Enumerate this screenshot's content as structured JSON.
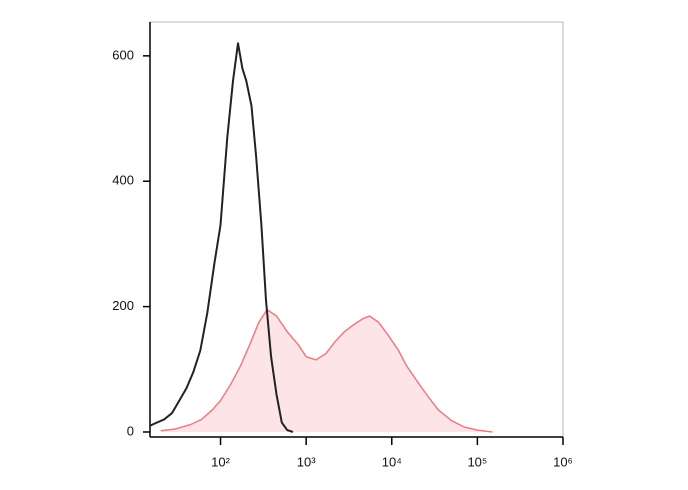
{
  "chart_data": {
    "type": "line",
    "xlog": true,
    "xlim": [
      15,
      1000000
    ],
    "ylim": [
      -8,
      654
    ],
    "xticks": [
      {
        "value": 100,
        "label": "10²"
      },
      {
        "value": 1000,
        "label": "10³"
      },
      {
        "value": 10000,
        "label": "10⁴"
      },
      {
        "value": 100000,
        "label": "10⁵"
      },
      {
        "value": 1000000,
        "label": "10⁶"
      }
    ],
    "yticks": [
      0,
      200,
      400,
      600
    ],
    "series": [
      {
        "color": "#222222",
        "x": [
          15,
          18,
          22,
          27,
          33,
          40,
          48,
          58,
          70,
          85,
          100,
          120,
          140,
          160,
          180,
          200,
          230,
          260,
          300,
          340,
          390,
          450,
          520,
          600,
          700
        ],
        "values": [
          10,
          15,
          20,
          30,
          50,
          70,
          95,
          130,
          190,
          270,
          330,
          470,
          560,
          620,
          580,
          560,
          520,
          440,
          330,
          210,
          120,
          60,
          15,
          3,
          0
        ]
      },
      {
        "color": "#f07a85",
        "fill": "#fde4e7",
        "x": [
          20,
          30,
          45,
          60,
          80,
          100,
          130,
          170,
          220,
          280,
          350,
          450,
          600,
          800,
          1000,
          1300,
          1700,
          2200,
          2800,
          3500,
          4500,
          5500,
          7000,
          9000,
          12000,
          15000,
          20000,
          27000,
          35000,
          50000,
          70000,
          100000,
          150000
        ],
        "values": [
          2,
          5,
          12,
          20,
          35,
          50,
          75,
          105,
          140,
          175,
          195,
          185,
          160,
          140,
          120,
          115,
          125,
          145,
          160,
          170,
          180,
          185,
          175,
          155,
          130,
          105,
          80,
          55,
          35,
          18,
          8,
          3,
          0
        ]
      }
    ]
  }
}
